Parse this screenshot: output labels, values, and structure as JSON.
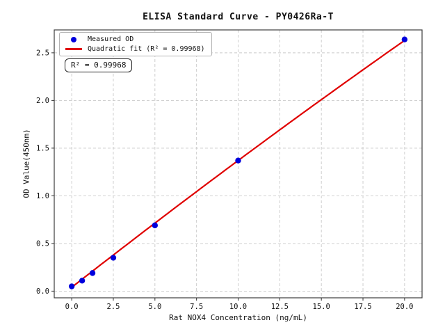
{
  "figure": {
    "background": "#ffffff"
  },
  "chart_data": {
    "type": "scatter",
    "title": "ELISA Standard Curve - PY0426Ra-T",
    "xlabel": "Rat NOX4 Concentration (ng/mL)",
    "ylabel": "OD Value(450nm)",
    "xlim": [
      -1.05,
      21.05
    ],
    "ylim": [
      -0.07,
      2.74
    ],
    "grid": true,
    "legend_position": "upper left",
    "xticks": {
      "values": [
        0,
        2.5,
        5,
        7.5,
        10,
        12.5,
        15,
        17.5,
        20
      ],
      "labels": [
        "0.0",
        "2.5",
        "5.0",
        "7.5",
        "10.0",
        "12.5",
        "15.0",
        "17.5",
        "20.0"
      ]
    },
    "yticks": {
      "values": [
        0,
        0.5,
        1.0,
        1.5,
        2.0,
        2.5
      ],
      "labels": [
        "0.0",
        "0.5",
        "1.0",
        "1.5",
        "2.0",
        "2.5"
      ]
    },
    "series": [
      {
        "name": "Measured OD",
        "type": "scatter",
        "color": "#0000dd",
        "marker": "circle",
        "x": [
          0,
          0.625,
          1.25,
          2.5,
          5,
          10,
          20
        ],
        "y": [
          0.05,
          0.11,
          0.19,
          0.35,
          0.69,
          1.37,
          2.64
        ]
      },
      {
        "name": "Quadratic fit (R² = 0.99968)",
        "type": "line",
        "color": "#e00000",
        "fit_model": "quadratic",
        "coefficients": {
          "a": 0.04,
          "b": 0.1365,
          "c": -0.00035
        },
        "x_range": [
          0,
          20
        ],
        "r_squared": 0.99968
      }
    ],
    "annotation": "R² = 0.99968"
  },
  "legend": {
    "entries": [
      {
        "label": "Measured OD",
        "marker": "dot",
        "color": "#0000dd"
      },
      {
        "label": "Quadratic fit (R² = 0.99968)",
        "marker": "line",
        "color": "#e00000"
      }
    ]
  },
  "annotation_box": {
    "text": "R² = 0.99968"
  },
  "colors": {
    "scatter": "#0000dd",
    "fit_line": "#e00000",
    "grid": "#c9c9c9",
    "spine": "#3c3c3c",
    "tick": "#333333",
    "text": "#111111"
  }
}
